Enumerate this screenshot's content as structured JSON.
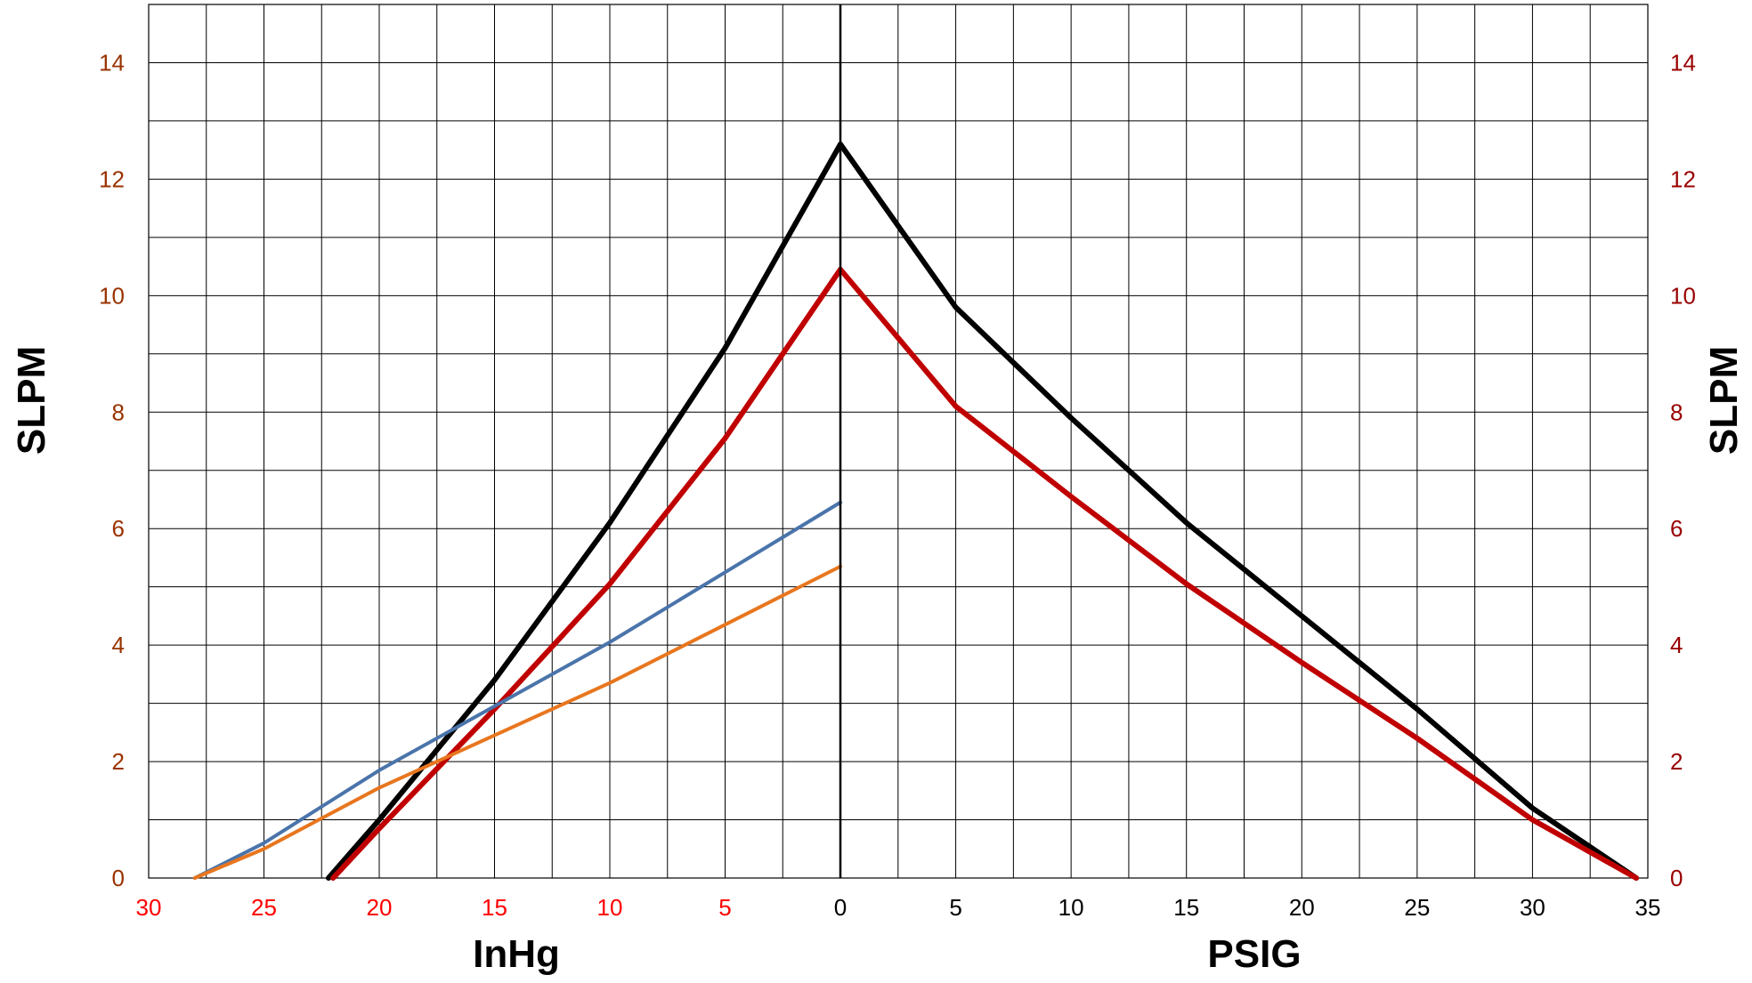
{
  "chart_data": {
    "type": "line",
    "grid": true,
    "colors": {
      "left_tick_labels_y": "#993300",
      "right_tick_labels_y": "#990000",
      "left_tick_labels_x": "#ff0000",
      "right_tick_labels_x": "#000000",
      "grid": "#000000"
    },
    "left_panel": {
      "xlabel": "InHg",
      "ylabel": "SLPM",
      "xlim": [
        30,
        0
      ],
      "ylim": [
        0,
        15
      ],
      "x_ticks": [
        30,
        25,
        20,
        15,
        10,
        5
      ],
      "y_ticks": [
        0,
        2,
        4,
        6,
        8,
        10,
        12,
        14
      ]
    },
    "right_panel": {
      "xlabel": "PSIG",
      "ylabel": "SLPM",
      "xlim": [
        0,
        35
      ],
      "ylim": [
        0,
        15
      ],
      "x_ticks": [
        0,
        5,
        10,
        15,
        20,
        25,
        30,
        35
      ],
      "y_ticks": [
        0,
        2,
        4,
        6,
        8,
        10,
        12,
        14
      ]
    },
    "series": [
      {
        "color": "#000000",
        "width": 6,
        "vacuum": [
          [
            22.2,
            0
          ],
          [
            20,
            1.0
          ],
          [
            15,
            3.4
          ],
          [
            10,
            6.1
          ],
          [
            5,
            9.1
          ],
          [
            0,
            12.6
          ]
        ],
        "pressure": [
          [
            0,
            12.6
          ],
          [
            5,
            9.8
          ],
          [
            10,
            7.9
          ],
          [
            15,
            6.1
          ],
          [
            20,
            4.5
          ],
          [
            25,
            2.9
          ],
          [
            30,
            1.2
          ],
          [
            34.5,
            0
          ]
        ]
      },
      {
        "color": "#c00000",
        "width": 6,
        "vacuum": [
          [
            22,
            0
          ],
          [
            20,
            0.85
          ],
          [
            15,
            2.9
          ],
          [
            10,
            5.05
          ],
          [
            5,
            7.55
          ],
          [
            0,
            10.45
          ]
        ],
        "pressure": [
          [
            0,
            10.45
          ],
          [
            5,
            8.1
          ],
          [
            10,
            6.55
          ],
          [
            15,
            5.05
          ],
          [
            20,
            3.7
          ],
          [
            25,
            2.4
          ],
          [
            30,
            1.0
          ],
          [
            34.5,
            0
          ]
        ]
      },
      {
        "color": "#4a74aa",
        "width": 4,
        "vacuum": [
          [
            28,
            0
          ],
          [
            25,
            0.6
          ],
          [
            20,
            1.85
          ],
          [
            15,
            2.95
          ],
          [
            10,
            4.05
          ],
          [
            5,
            5.25
          ],
          [
            0,
            6.45
          ]
        ],
        "pressure": []
      },
      {
        "color": "#e8761e",
        "width": 4,
        "vacuum": [
          [
            28,
            0
          ],
          [
            25,
            0.5
          ],
          [
            20,
            1.55
          ],
          [
            15,
            2.45
          ],
          [
            10,
            3.35
          ],
          [
            5,
            4.35
          ],
          [
            0,
            5.35
          ]
        ],
        "pressure": []
      }
    ]
  }
}
